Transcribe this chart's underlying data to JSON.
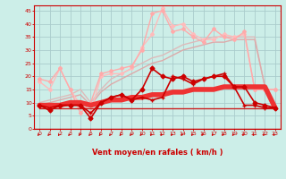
{
  "x": [
    0,
    1,
    2,
    3,
    4,
    5,
    6,
    7,
    8,
    9,
    10,
    11,
    12,
    13,
    14,
    15,
    16,
    17,
    18,
    19,
    20,
    21,
    22,
    23
  ],
  "background_color": "#cceee8",
  "grid_color": "#aacccc",
  "xlabel": "Vent moyen/en rafales ( km/h )",
  "xlabel_color": "#cc0000",
  "tick_color": "#cc0000",
  "ylim": [
    0,
    47
  ],
  "xlim": [
    -0.5,
    23.5
  ],
  "yticks": [
    0,
    5,
    10,
    15,
    20,
    25,
    30,
    35,
    40,
    45
  ],
  "line_pink1": {
    "y": [
      19,
      18,
      23,
      15,
      6,
      10,
      21,
      22,
      23,
      24,
      30,
      44,
      45,
      37,
      38,
      35,
      33,
      38,
      35,
      34,
      37,
      15,
      15,
      15
    ],
    "color": "#ffaaaa",
    "lw": 1.0,
    "marker": "D",
    "ms": 2.0,
    "zorder": 2
  },
  "line_pink2": {
    "y": [
      18,
      15,
      23,
      15,
      9,
      6,
      20,
      21,
      21,
      23,
      31,
      36,
      46,
      39,
      40,
      36,
      34,
      34,
      36,
      35,
      36,
      15,
      15,
      15
    ],
    "color": "#ffbbbb",
    "lw": 1.0,
    "marker": "D",
    "ms": 2.0,
    "zorder": 2
  },
  "line_slope1": {
    "y": [
      9,
      10,
      11,
      12,
      13,
      9,
      14,
      17,
      19,
      21,
      23,
      25,
      26,
      28,
      30,
      31,
      32,
      33,
      33,
      34,
      34,
      34,
      16,
      8
    ],
    "color": "#ddaaaa",
    "lw": 1.0,
    "marker": null,
    "zorder": 2
  },
  "line_slope2": {
    "y": [
      10,
      11,
      12,
      13,
      15,
      10,
      15,
      19,
      21,
      23,
      25,
      27,
      28,
      30,
      32,
      33,
      34,
      35,
      35,
      35,
      35,
      35,
      16,
      9
    ],
    "color": "#ddbbbb",
    "lw": 1.0,
    "marker": null,
    "zorder": 2
  },
  "line_flat": {
    "y": [
      8,
      8,
      8,
      8,
      8,
      8,
      8,
      8,
      8,
      8,
      8,
      8,
      8,
      8,
      8,
      8,
      8,
      8,
      8,
      8,
      8,
      8,
      8,
      8
    ],
    "color": "#cc2222",
    "lw": 1.0,
    "marker": null,
    "zorder": 3
  },
  "line_thick": {
    "y": [
      9,
      9,
      9,
      10,
      10,
      9,
      10,
      11,
      11,
      12,
      12,
      13,
      13,
      14,
      14,
      15,
      15,
      15,
      16,
      16,
      16,
      16,
      16,
      8
    ],
    "color": "#ee3333",
    "lw": 4.0,
    "marker": null,
    "zorder": 4
  },
  "line_marker1": {
    "y": [
      9,
      7,
      9,
      9,
      9,
      4,
      10,
      12,
      13,
      11,
      15,
      23,
      20,
      19,
      20,
      18,
      19,
      20,
      20,
      16,
      16,
      10,
      9,
      8
    ],
    "color": "#cc0000",
    "lw": 1.2,
    "marker": "D",
    "ms": 2.5,
    "zorder": 6
  },
  "line_marker2": {
    "y": [
      9,
      8,
      9,
      9,
      9,
      6,
      10,
      12,
      13,
      11,
      12,
      11,
      12,
      20,
      19,
      17,
      19,
      20,
      21,
      16,
      9,
      9,
      8,
      8
    ],
    "color": "#cc0000",
    "lw": 1.2,
    "marker": "+",
    "ms": 3.0,
    "zorder": 5
  }
}
